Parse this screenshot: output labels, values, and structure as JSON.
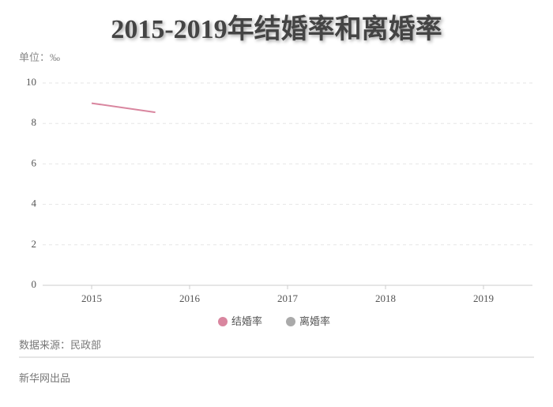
{
  "chart_data": {
    "type": "line",
    "title": "2015-2019年结婚率和离婚率",
    "unit_label": "单位：‰",
    "xlim": [
      2014.5,
      2019.5
    ],
    "xticks": [
      2015,
      2016,
      2017,
      2018,
      2019
    ],
    "ylim": [
      0,
      10
    ],
    "yticks": [
      0,
      2,
      4,
      6,
      8,
      10
    ],
    "grid": true,
    "series": [
      {
        "name": "结婚率",
        "color": "#d9869f",
        "x": [
          2015,
          2015.65
        ],
        "values": [
          9.0,
          8.55
        ]
      },
      {
        "name": "离婚率",
        "color": "#aaaaaa",
        "x": [],
        "values": []
      }
    ],
    "source": "数据来源：民政部",
    "credit": "新华网出品"
  }
}
